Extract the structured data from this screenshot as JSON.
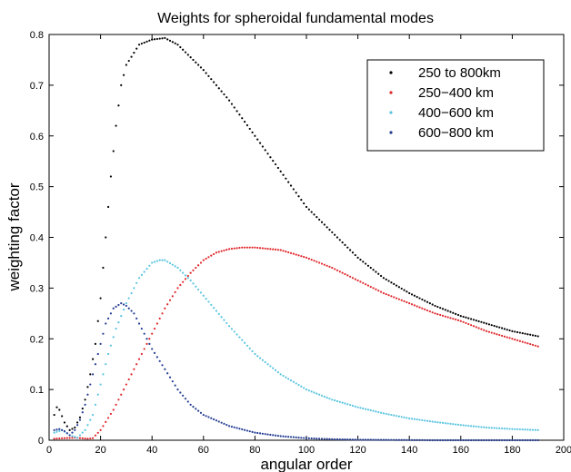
{
  "chart_data": {
    "type": "scatter",
    "title": "Weights for spheroidal fundamental modes",
    "xlabel": "angular order",
    "ylabel": "weighting factor",
    "xlim": [
      0,
      200
    ],
    "ylim": [
      0,
      0.8
    ],
    "x_ticks": [
      "0",
      "20",
      "40",
      "60",
      "80",
      "100",
      "120",
      "140",
      "160",
      "180",
      "200"
    ],
    "y_ticks": [
      "0",
      "0.1",
      "0.2",
      "0.3",
      "0.4",
      "0.5",
      "0.6",
      "0.7",
      "0.8"
    ],
    "grid": false,
    "legend_position": "top-right",
    "x_range": [
      2,
      190
    ],
    "series": [
      {
        "name": "250 to 800km",
        "color": "#000000",
        "points": [
          [
            2,
            0.05
          ],
          [
            3,
            0.065
          ],
          [
            4,
            0.06
          ],
          [
            6,
            0.035
          ],
          [
            8,
            0.02
          ],
          [
            10,
            0.025
          ],
          [
            12,
            0.045
          ],
          [
            14,
            0.08
          ],
          [
            16,
            0.13
          ],
          [
            18,
            0.19
          ],
          [
            20,
            0.28
          ],
          [
            22,
            0.4
          ],
          [
            24,
            0.52
          ],
          [
            26,
            0.62
          ],
          [
            28,
            0.7
          ],
          [
            30,
            0.74
          ],
          [
            35,
            0.78
          ],
          [
            40,
            0.79
          ],
          [
            45,
            0.793
          ],
          [
            50,
            0.78
          ],
          [
            60,
            0.73
          ],
          [
            70,
            0.67
          ],
          [
            80,
            0.6
          ],
          [
            90,
            0.53
          ],
          [
            100,
            0.46
          ],
          [
            110,
            0.41
          ],
          [
            120,
            0.36
          ],
          [
            130,
            0.32
          ],
          [
            140,
            0.29
          ],
          [
            150,
            0.265
          ],
          [
            160,
            0.245
          ],
          [
            170,
            0.23
          ],
          [
            180,
            0.215
          ],
          [
            190,
            0.205
          ]
        ]
      },
      {
        "name": "250−400 km",
        "color": "#e0262b",
        "points": [
          [
            2,
            0.003
          ],
          [
            6,
            0.004
          ],
          [
            10,
            0.005
          ],
          [
            15,
            0.003
          ],
          [
            17,
            0.004
          ],
          [
            20,
            0.02
          ],
          [
            25,
            0.06
          ],
          [
            30,
            0.11
          ],
          [
            35,
            0.16
          ],
          [
            40,
            0.21
          ],
          [
            45,
            0.26
          ],
          [
            50,
            0.3
          ],
          [
            55,
            0.33
          ],
          [
            60,
            0.355
          ],
          [
            65,
            0.37
          ],
          [
            70,
            0.377
          ],
          [
            75,
            0.38
          ],
          [
            80,
            0.38
          ],
          [
            90,
            0.375
          ],
          [
            100,
            0.36
          ],
          [
            110,
            0.34
          ],
          [
            120,
            0.315
          ],
          [
            130,
            0.29
          ],
          [
            140,
            0.27
          ],
          [
            150,
            0.25
          ],
          [
            160,
            0.235
          ],
          [
            170,
            0.215
          ],
          [
            180,
            0.2
          ],
          [
            190,
            0.185
          ]
        ]
      },
      {
        "name": "400−600 km",
        "color": "#59c4df",
        "points": [
          [
            2,
            0.015
          ],
          [
            5,
            0.02
          ],
          [
            8,
            0.01
          ],
          [
            11,
            0.005
          ],
          [
            14,
            0.02
          ],
          [
            17,
            0.05
          ],
          [
            20,
            0.11
          ],
          [
            23,
            0.17
          ],
          [
            26,
            0.22
          ],
          [
            30,
            0.27
          ],
          [
            35,
            0.32
          ],
          [
            40,
            0.35
          ],
          [
            43,
            0.355
          ],
          [
            45,
            0.355
          ],
          [
            50,
            0.34
          ],
          [
            55,
            0.315
          ],
          [
            60,
            0.285
          ],
          [
            70,
            0.225
          ],
          [
            80,
            0.17
          ],
          [
            90,
            0.13
          ],
          [
            100,
            0.1
          ],
          [
            110,
            0.08
          ],
          [
            120,
            0.065
          ],
          [
            130,
            0.053
          ],
          [
            140,
            0.043
          ],
          [
            150,
            0.036
          ],
          [
            160,
            0.03
          ],
          [
            170,
            0.025
          ],
          [
            180,
            0.022
          ],
          [
            190,
            0.02
          ]
        ]
      },
      {
        "name": "600−800 km",
        "color": "#243c93",
        "points": [
          [
            2,
            0.02
          ],
          [
            4,
            0.022
          ],
          [
            6,
            0.018
          ],
          [
            8,
            0.01
          ],
          [
            10,
            0.02
          ],
          [
            12,
            0.04
          ],
          [
            14,
            0.07
          ],
          [
            16,
            0.11
          ],
          [
            18,
            0.15
          ],
          [
            20,
            0.19
          ],
          [
            22,
            0.23
          ],
          [
            25,
            0.26
          ],
          [
            28,
            0.27
          ],
          [
            30,
            0.265
          ],
          [
            33,
            0.25
          ],
          [
            36,
            0.22
          ],
          [
            40,
            0.18
          ],
          [
            45,
            0.14
          ],
          [
            50,
            0.1
          ],
          [
            55,
            0.07
          ],
          [
            60,
            0.05
          ],
          [
            70,
            0.028
          ],
          [
            80,
            0.015
          ],
          [
            90,
            0.008
          ],
          [
            100,
            0.004
          ],
          [
            110,
            0.002
          ],
          [
            120,
            0.001
          ],
          [
            150,
            0.0
          ],
          [
            190,
            0.0
          ]
        ]
      }
    ]
  }
}
